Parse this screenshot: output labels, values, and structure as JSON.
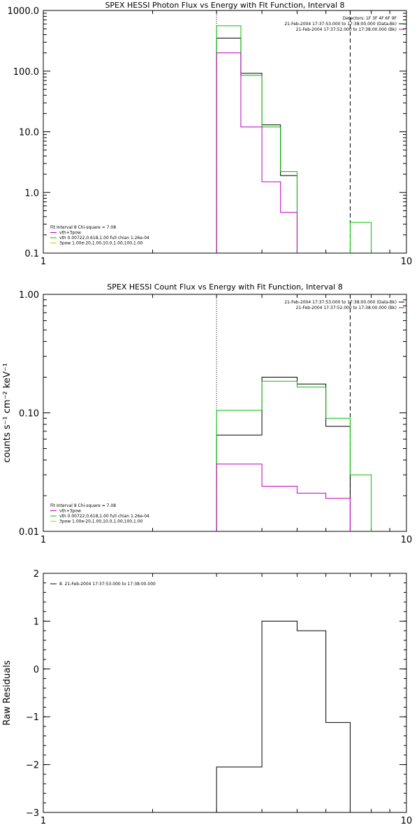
{
  "chart_data": [
    {
      "type": "line",
      "title": "SPEX HESSI Photon Flux vs Energy with Fit Function, Interval 8",
      "xlabel": "",
      "ylabel": "",
      "xscale": "log",
      "yscale": "log",
      "xlim": [
        1,
        10
      ],
      "ylim": [
        0.1,
        1000
      ],
      "x_ticks": [
        {
          "v": 1,
          "label": "1"
        },
        {
          "v": 10,
          "label": "10"
        }
      ],
      "y_ticks": [
        {
          "v": 0.1,
          "label": "0.1"
        },
        {
          "v": 1,
          "label": "1.0"
        },
        {
          "v": 10,
          "label": "10.0"
        },
        {
          "v": 100,
          "label": "100.0"
        },
        {
          "v": 1000,
          "label": "1000.0"
        }
      ],
      "vlines": [
        {
          "x": 3.0,
          "style": "dotted"
        },
        {
          "x": 7.0,
          "style": "dashed"
        }
      ],
      "info": [
        {
          "text": "Detectors: 1F 3F 4F 6F 9F",
          "color": "#000000"
        },
        {
          "text": "21-Feb-2004 17:37:53.000 to 17:38:00.000 (Data-Bk)",
          "color": "#000000"
        },
        {
          "text": "21-Feb-2004 17:37:52.000 to 17:38:00.000 (Bk)",
          "color": "#c000c0"
        }
      ],
      "legend": [
        {
          "text": "Fit Interval 8   Chi-square = 7.08",
          "color": null
        },
        {
          "text": "vth+3pow",
          "color": "#c000c0"
        },
        {
          "text": "vth 0.00722,0.618,1.00  full chian 1.26e-04",
          "color": "#00c000"
        },
        {
          "text": "3pow 1.00e-20,1.00,10.0,1.00,100,1.00",
          "color": "#c8c800"
        }
      ],
      "series": [
        {
          "color": "#000000",
          "edges": [
            3.0,
            3.5,
            4.0,
            4.5,
            5.0,
            6.0,
            7.0
          ],
          "values": [
            350,
            92,
            13,
            1.9,
            null,
            null
          ]
        },
        {
          "color": "#00c000",
          "edges": [
            3.0,
            3.5,
            4.0,
            4.5,
            5.0,
            6.0,
            7.0,
            8.0
          ],
          "values": [
            560,
            85,
            12,
            2.2,
            null,
            null,
            0.32
          ]
        },
        {
          "color": "#c000c0",
          "edges": [
            3.0,
            3.5,
            4.0,
            4.5,
            5.0,
            6.0,
            7.0
          ],
          "values": [
            200,
            12,
            1.5,
            0.47,
            null,
            null
          ]
        }
      ]
    },
    {
      "type": "line",
      "title": "SPEX HESSI Count Flux vs Energy with Fit Function, Interval 8",
      "xlabel": "",
      "ylabel": "counts s⁻¹ cm⁻² keV⁻¹",
      "xscale": "log",
      "yscale": "log",
      "xlim": [
        1,
        10
      ],
      "ylim": [
        0.01,
        1.0
      ],
      "x_ticks": [
        {
          "v": 1,
          "label": "1"
        },
        {
          "v": 10,
          "label": "10"
        }
      ],
      "y_ticks": [
        {
          "v": 0.01,
          "label": "0.01"
        },
        {
          "v": 0.1,
          "label": "0.10"
        },
        {
          "v": 1,
          "label": "1.00"
        }
      ],
      "vlines": [
        {
          "x": 3.0,
          "style": "dotted"
        },
        {
          "x": 7.0,
          "style": "dashed"
        }
      ],
      "info": [
        {
          "text": "21-Feb-2004 17:37:53.000 to 17:38:00.000 (Data-Bk)",
          "color": "#000000"
        },
        {
          "text": "21-Feb-2004 17:37:52.000 to 17:38:00.000 (Bk)",
          "color": "#c000c0"
        }
      ],
      "legend": [
        {
          "text": "Fit Interval 8   Chi-square = 7.08",
          "color": null
        },
        {
          "text": "vth+3pow",
          "color": "#c000c0"
        },
        {
          "text": "vth 0.00722,0.618,1.00  full chian 1.26e-04",
          "color": "#00c000"
        },
        {
          "text": "3pow 1.00e-20,1.00,10.0,1.00,100,1.00",
          "color": "#c8c800"
        }
      ],
      "series": [
        {
          "color": "#000000",
          "edges": [
            3.0,
            4.0,
            5.0,
            6.0,
            7.0
          ],
          "values": [
            0.065,
            0.2,
            0.175,
            0.077,
            null
          ]
        },
        {
          "color": "#00c000",
          "edges": [
            3.0,
            4.0,
            5.0,
            6.0,
            7.0,
            8.0
          ],
          "values": [
            0.105,
            0.185,
            0.165,
            0.09,
            0.03
          ]
        },
        {
          "color": "#c000c0",
          "edges": [
            3.0,
            4.0,
            5.0,
            6.0,
            7.0
          ],
          "values": [
            0.037,
            0.024,
            0.021,
            0.019,
            null
          ]
        }
      ]
    },
    {
      "type": "line",
      "title": "",
      "xlabel": "",
      "ylabel": "Raw Residuals",
      "xscale": "log",
      "yscale": "linear",
      "xlim": [
        1,
        10
      ],
      "ylim": [
        -3,
        2
      ],
      "x_ticks": [
        {
          "v": 1,
          "label": "1"
        },
        {
          "v": 10,
          "label": "10"
        }
      ],
      "y_ticks": [
        {
          "v": -3,
          "label": "−3"
        },
        {
          "v": -2,
          "label": "−2"
        },
        {
          "v": -1,
          "label": "−1"
        },
        {
          "v": 0,
          "label": "0"
        },
        {
          "v": 1,
          "label": "1"
        },
        {
          "v": 2,
          "label": "2"
        }
      ],
      "vlines": [],
      "info": [],
      "legend": [
        {
          "text": "8. 21-Feb-2004 17:37:53.000 to 17:38:00.000",
          "color": "#000000"
        }
      ],
      "series": [
        {
          "color": "#000000",
          "edges": [
            3.0,
            4.0,
            5.0,
            6.0,
            7.0
          ],
          "values": [
            -2.05,
            1.0,
            0.8,
            -1.12
          ],
          "drop_end": true
        }
      ]
    }
  ]
}
